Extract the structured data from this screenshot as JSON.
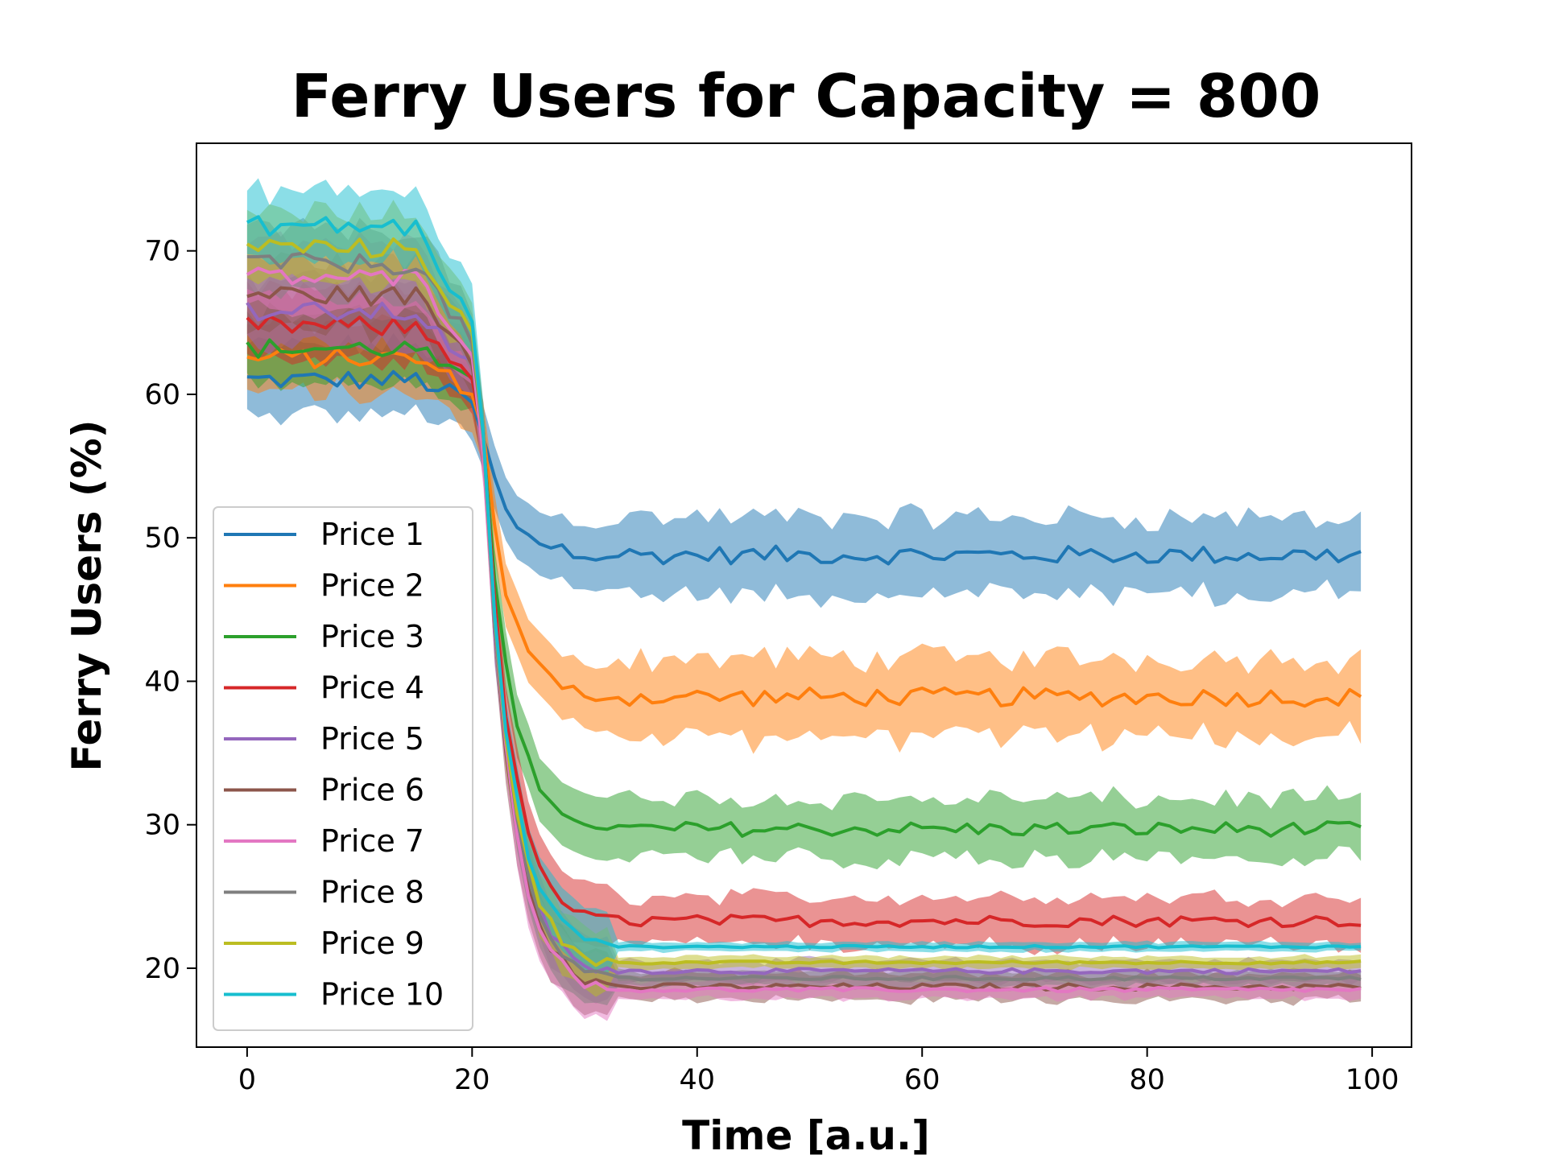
{
  "chart_data": {
    "type": "line",
    "title": "Ferry Users for Capacity = 800",
    "xlabel": "Time [a.u.]",
    "ylabel": "Ferry Users (%)",
    "xlim": [
      -4.5,
      103.5
    ],
    "ylim": [
      14.5,
      77.5
    ],
    "xticks": [
      0,
      20,
      40,
      60,
      80,
      100
    ],
    "yticks": [
      20,
      30,
      40,
      50,
      60,
      70
    ],
    "grid": false,
    "legend_position": "lower-left",
    "x": {
      "start": 0,
      "end": 99,
      "step": 1
    },
    "transition": {
      "start": 21,
      "end": 32
    },
    "series": [
      {
        "name": "Price 1",
        "color": "#1f77b4",
        "initial": 61.0,
        "final": 48.8,
        "band": 2.5
      },
      {
        "name": "Price 2",
        "color": "#ff7f0e",
        "initial": 62.5,
        "final": 38.9,
        "band": 2.6
      },
      {
        "name": "Price 3",
        "color": "#2ca02c",
        "initial": 63.2,
        "final": 29.7,
        "band": 2.0
      },
      {
        "name": "Price 4",
        "color": "#d62728",
        "initial": 64.8,
        "final": 23.3,
        "band": 1.6
      },
      {
        "name": "Price 5",
        "color": "#9467bd",
        "initial": 65.8,
        "final": 19.8,
        "band": 0.7
      },
      {
        "name": "Price 6",
        "color": "#8c564b",
        "initial": 67.0,
        "final": 18.7,
        "band": 0.9
      },
      {
        "name": "Price 7",
        "color": "#e377c2",
        "initial": 68.2,
        "final": 18.5,
        "band": 0.6
      },
      {
        "name": "Price 8",
        "color": "#7f7f7f",
        "initial": 69.2,
        "final": 19.3,
        "band": 0.5
      },
      {
        "name": "Price 9",
        "color": "#bcbd22",
        "initial": 70.3,
        "final": 20.4,
        "band": 0.4
      },
      {
        "name": "Price 10",
        "color": "#17becf",
        "initial": 71.8,
        "final": 21.5,
        "band": 0.3
      }
    ]
  }
}
